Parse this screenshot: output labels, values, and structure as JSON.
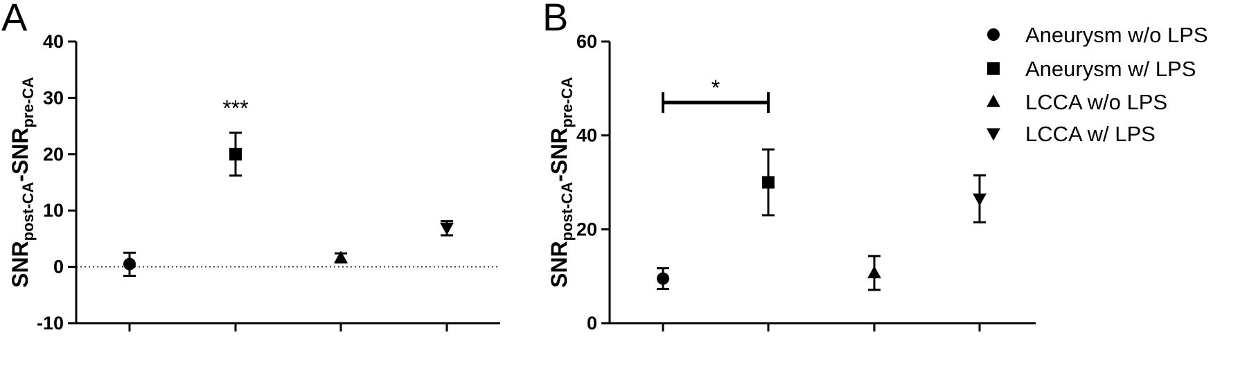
{
  "chart_data": [
    {
      "type": "scatter",
      "panel": "A",
      "ylabel": {
        "parts": [
          {
            "text": "SNR",
            "sub": false
          },
          {
            "text": "post-CA",
            "sub": true
          },
          {
            "text": "-SNR",
            "sub": false
          },
          {
            "text": "pre-CA",
            "sub": true
          }
        ]
      },
      "ylim": [
        -10,
        40
      ],
      "yticks": [
        -10,
        0,
        10,
        20,
        30,
        40
      ],
      "categories": [
        "Aneurysm w/o LPS",
        "Aneurysm w/ LPS",
        "LCCA w/o LPS",
        "LCCA w/ LPS"
      ],
      "series": [
        {
          "name": "Aneurysm w/o LPS",
          "marker": "circle",
          "mean": 0.5,
          "lower": -1.6,
          "upper": 2.5
        },
        {
          "name": "Aneurysm w/ LPS",
          "marker": "square",
          "mean": 20,
          "lower": 16.2,
          "upper": 23.8
        },
        {
          "name": "LCCA w/o LPS",
          "marker": "triangle-up",
          "mean": 1.6,
          "lower": 0.8,
          "upper": 2.4
        },
        {
          "name": "LCCA w/ LPS",
          "marker": "triangle-down",
          "mean": 6.9,
          "lower": 5.6,
          "upper": 8.1
        }
      ],
      "reference_line": {
        "y": 0,
        "style": "dotted"
      },
      "annotations": [
        {
          "text": "***",
          "category_index": 1,
          "y": 29
        }
      ]
    },
    {
      "type": "scatter",
      "panel": "B",
      "ylabel": {
        "parts": [
          {
            "text": "SNR",
            "sub": false
          },
          {
            "text": "post-CA",
            "sub": true
          },
          {
            "text": "-SNR",
            "sub": false
          },
          {
            "text": "pre-CA",
            "sub": true
          }
        ]
      },
      "ylim": [
        0,
        60
      ],
      "yticks": [
        0,
        20,
        40,
        60
      ],
      "categories": [
        "Aneurysm w/o LPS",
        "Aneurysm w/ LPS",
        "LCCA w/o LPS",
        "LCCA w/ LPS"
      ],
      "series": [
        {
          "name": "Aneurysm w/o LPS",
          "marker": "circle",
          "mean": 9.5,
          "lower": 7.3,
          "upper": 11.7
        },
        {
          "name": "Aneurysm w/ LPS",
          "marker": "square",
          "mean": 30,
          "lower": 23,
          "upper": 37
        },
        {
          "name": "LCCA w/o LPS",
          "marker": "triangle-up",
          "mean": 10.7,
          "lower": 7.1,
          "upper": 14.3
        },
        {
          "name": "LCCA w/ LPS",
          "marker": "triangle-down",
          "mean": 26.5,
          "lower": 21.5,
          "upper": 31.5
        }
      ],
      "significance": {
        "text": "*",
        "from_index": 0,
        "to_index": 1,
        "y": 47
      },
      "legend": {
        "position": "top-right",
        "entries": [
          {
            "label": "Aneurysm w/o LPS",
            "marker": "circle"
          },
          {
            "label": "Aneurysm w/ LPS",
            "marker": "square"
          },
          {
            "label": "LCCA w/o LPS",
            "marker": "triangle-up"
          },
          {
            "label": "LCCA w/ LPS",
            "marker": "triangle-down"
          }
        ]
      }
    }
  ]
}
